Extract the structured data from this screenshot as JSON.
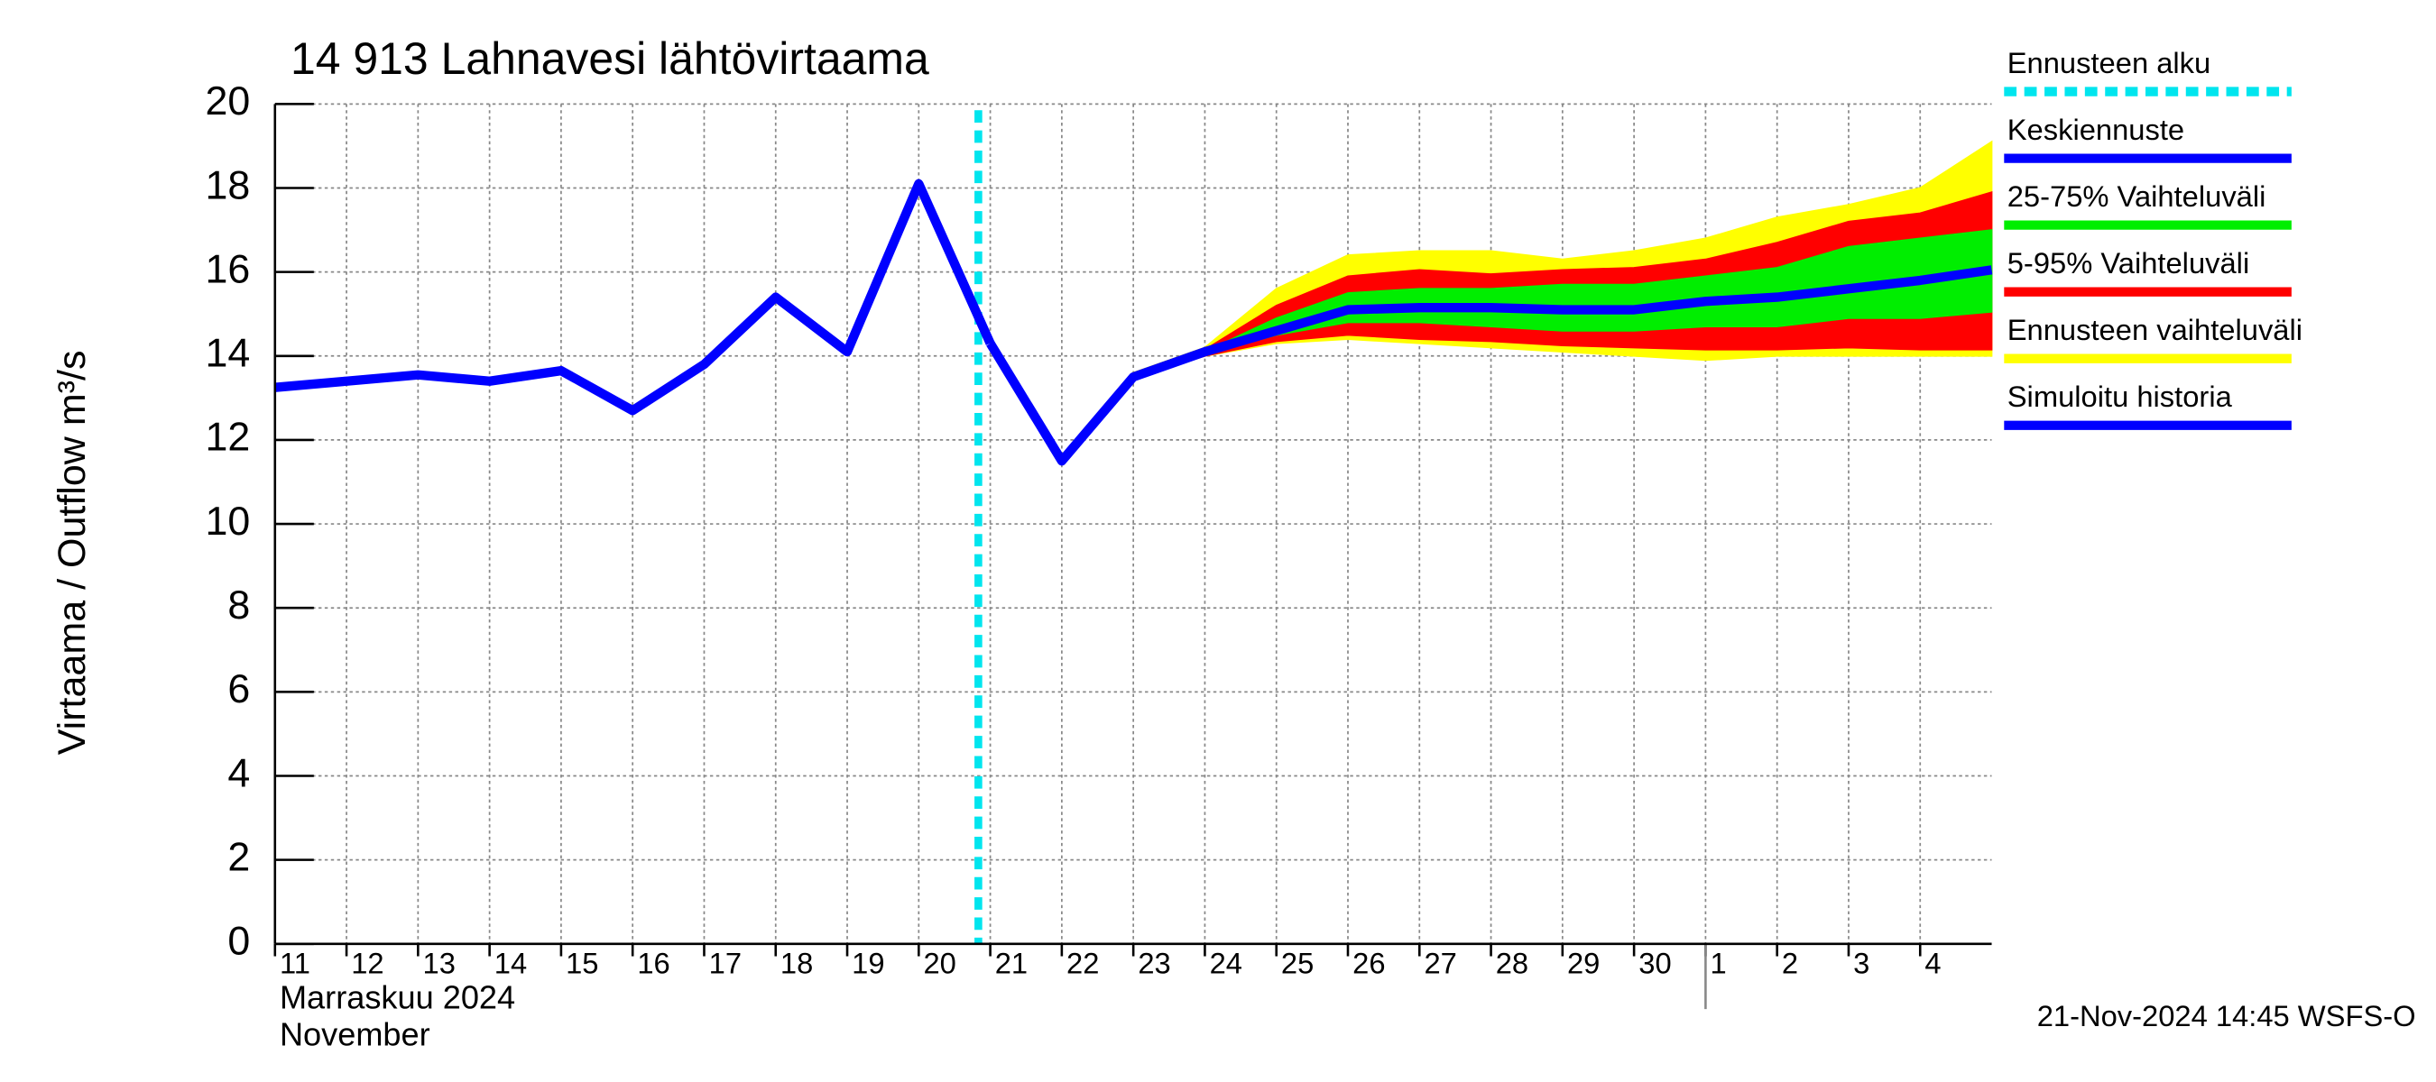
{
  "chart_data": {
    "type": "line",
    "title": "14 913 Lahnavesi lähtövirtaama",
    "y_label": "Virtaama / Outflow    m³/s",
    "x_label_fi": "Marraskuu 2024",
    "x_label_en": "November",
    "footer": "21-Nov-2024 14:45 WSFS-O",
    "grid": true,
    "x": [
      "2024-11-11",
      "2024-11-12",
      "2024-11-13",
      "2024-11-14",
      "2024-11-15",
      "2024-11-16",
      "2024-11-17",
      "2024-11-18",
      "2024-11-19",
      "2024-11-20",
      "2024-11-21",
      "2024-11-22",
      "2024-11-23",
      "2024-11-24",
      "2024-11-25",
      "2024-11-26",
      "2024-11-27",
      "2024-11-28",
      "2024-11-29",
      "2024-11-30",
      "2024-12-01",
      "2024-12-02",
      "2024-12-03",
      "2024-12-04",
      "2024-12-05"
    ],
    "xlim": [
      "2024-11-11",
      "2024-12-05"
    ],
    "xticks": [
      {
        "value": "2024-11-11",
        "label": "11"
      },
      {
        "value": "2024-11-12",
        "label": "12"
      },
      {
        "value": "2024-11-13",
        "label": "13"
      },
      {
        "value": "2024-11-14",
        "label": "14"
      },
      {
        "value": "2024-11-15",
        "label": "15"
      },
      {
        "value": "2024-11-16",
        "label": "16"
      },
      {
        "value": "2024-11-17",
        "label": "17"
      },
      {
        "value": "2024-11-18",
        "label": "18"
      },
      {
        "value": "2024-11-19",
        "label": "19"
      },
      {
        "value": "2024-11-20",
        "label": "20"
      },
      {
        "value": "2024-11-21",
        "label": "21"
      },
      {
        "value": "2024-11-22",
        "label": "22"
      },
      {
        "value": "2024-11-23",
        "label": "23"
      },
      {
        "value": "2024-11-24",
        "label": "24"
      },
      {
        "value": "2024-11-25",
        "label": "25"
      },
      {
        "value": "2024-11-26",
        "label": "26"
      },
      {
        "value": "2024-11-27",
        "label": "27"
      },
      {
        "value": "2024-11-28",
        "label": "28"
      },
      {
        "value": "2024-11-29",
        "label": "29"
      },
      {
        "value": "2024-11-30",
        "label": "30"
      },
      {
        "value": "2024-12-01",
        "label": "1"
      },
      {
        "value": "2024-12-02",
        "label": "2"
      },
      {
        "value": "2024-12-03",
        "label": "3"
      },
      {
        "value": "2024-12-04",
        "label": "4"
      }
    ],
    "ylim": [
      0,
      20
    ],
    "yticks": [
      0,
      2,
      4,
      6,
      8,
      10,
      12,
      14,
      16,
      18,
      20
    ],
    "forecast_start": {
      "name": "Ennusteen alku",
      "x": "2024-11-20T20:00",
      "color": "#00e5ee"
    },
    "bands": [
      {
        "name": "Ennusteen vaihteluväli",
        "color": "#ffff00",
        "upper": [
          null,
          null,
          null,
          null,
          null,
          null,
          null,
          null,
          null,
          null,
          14.3,
          11.5,
          13.6,
          14.2,
          15.6,
          16.4,
          16.5,
          16.5,
          16.3,
          16.5,
          16.8,
          17.3,
          17.6,
          18.0,
          19.1
        ],
        "lower": [
          null,
          null,
          null,
          null,
          null,
          null,
          null,
          null,
          null,
          null,
          14.3,
          11.5,
          13.5,
          14.0,
          14.3,
          14.4,
          14.3,
          14.2,
          14.1,
          14.0,
          13.9,
          14.0,
          14.0,
          14.0,
          14.0
        ]
      },
      {
        "name": "5-95% Vaihteluväli",
        "color": "#ff0000",
        "upper": [
          null,
          null,
          null,
          null,
          null,
          null,
          null,
          null,
          null,
          null,
          14.3,
          11.5,
          13.55,
          14.15,
          15.2,
          15.9,
          16.05,
          15.95,
          16.05,
          16.1,
          16.3,
          16.7,
          17.2,
          17.4,
          17.9
        ],
        "lower": [
          null,
          null,
          null,
          null,
          null,
          null,
          null,
          null,
          null,
          null,
          14.3,
          11.5,
          13.5,
          14.0,
          14.35,
          14.5,
          14.4,
          14.35,
          14.25,
          14.2,
          14.15,
          14.15,
          14.2,
          14.15,
          14.15
        ]
      },
      {
        "name": "25-75% Vaihteluväli",
        "color": "#00ee00",
        "upper": [
          null,
          null,
          null,
          null,
          null,
          null,
          null,
          null,
          null,
          null,
          14.3,
          11.5,
          13.5,
          14.1,
          14.9,
          15.5,
          15.6,
          15.6,
          15.7,
          15.7,
          15.9,
          16.1,
          16.6,
          16.8,
          17.0
        ],
        "lower": [
          null,
          null,
          null,
          null,
          null,
          null,
          null,
          null,
          null,
          null,
          14.3,
          11.5,
          13.5,
          14.05,
          14.5,
          14.8,
          14.8,
          14.7,
          14.6,
          14.6,
          14.7,
          14.7,
          14.9,
          14.9,
          15.05
        ]
      }
    ],
    "series": [
      {
        "name": "Simuloitu historia",
        "color": "#0000ff",
        "values": [
          13.25,
          13.4,
          13.55,
          13.4,
          13.65,
          12.7,
          13.8,
          15.4,
          14.1,
          18.1,
          14.3,
          null,
          null,
          null,
          null,
          null,
          null,
          null,
          null,
          null,
          null,
          null,
          null,
          null,
          null
        ]
      },
      {
        "name": "Keskiennuste",
        "color": "#0000ff",
        "values": [
          null,
          null,
          null,
          null,
          null,
          null,
          null,
          null,
          null,
          null,
          14.3,
          11.5,
          13.5,
          14.1,
          14.6,
          15.1,
          15.15,
          15.15,
          15.1,
          15.1,
          15.3,
          15.4,
          15.6,
          15.8,
          16.05
        ]
      }
    ]
  }
}
